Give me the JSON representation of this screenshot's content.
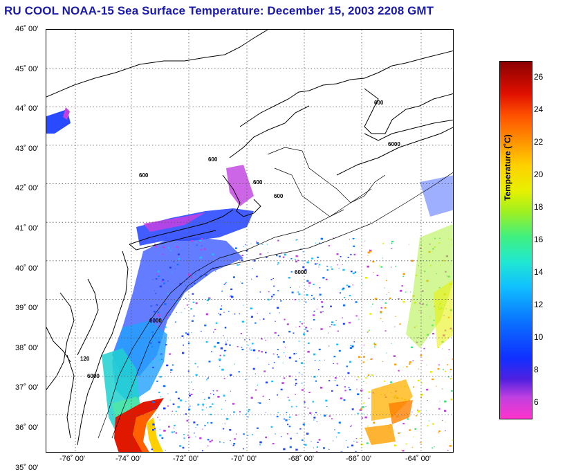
{
  "title": "RU COOL  NOAA-15  Sea Surface Temperature:  December 15, 2003 2208 GMT",
  "latitudes": [
    "46˚ 00'",
    "45˚ 00'",
    "44˚ 00'",
    "43˚ 00'",
    "42˚ 00'",
    "41˚ 00'",
    "40˚ 00'",
    "39˚ 00'",
    "38˚ 00'",
    "37˚ 00'",
    "36˚ 00'",
    "35˚ 00'"
  ],
  "longitudes": [
    "-76˚ 00'",
    "-74˚ 00'",
    "-72˚ 00'",
    "-70˚ 00'",
    "-68˚ 00'",
    "-66˚ 00'",
    "-64˚ 00'"
  ],
  "colorbar": {
    "label": "Temperature (˚C)",
    "ticks": [
      "26",
      "24",
      "22",
      "20",
      "18",
      "16",
      "14",
      "12",
      "10",
      "8",
      "6"
    ],
    "range": [
      5,
      27
    ]
  },
  "isobaths": [
    "120",
    "600",
    "6000"
  ],
  "colors": {
    "title": "#1a1aa8",
    "land_outline": "#000000",
    "grid": "#555555"
  }
}
